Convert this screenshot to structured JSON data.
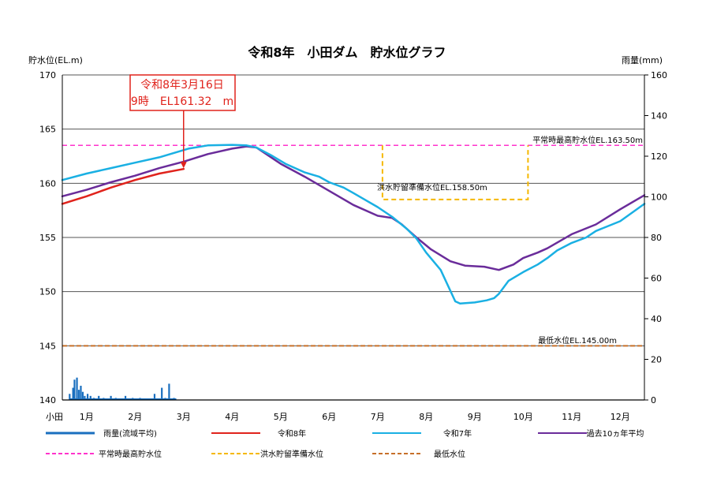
{
  "chart_data": {
    "type": "line",
    "title": "令和8年　小田ダム　貯水位グラフ",
    "ylabel_left": "貯水位(EL.m)",
    "ylabel_right": "雨量(mm)",
    "ylim_left": [
      140,
      170
    ],
    "ylim_right": [
      0,
      160
    ],
    "yticks_left": [
      "140",
      "145",
      "150",
      "155",
      "160",
      "165",
      "170"
    ],
    "yticks_right": [
      "0",
      "20",
      "40",
      "60",
      "80",
      "100",
      "120",
      "140",
      "160"
    ],
    "x_prefix": "小田",
    "months": [
      "1月",
      "2月",
      "3月",
      "4月",
      "5月",
      "6月",
      "7月",
      "8月",
      "9月",
      "10月",
      "11月",
      "12月"
    ],
    "grid": true,
    "legend_position": "bottom",
    "annotation": {
      "line1": "令和8年3月16日",
      "line2": "9時　EL161.32　m",
      "x": 2.5,
      "y": 161.32
    },
    "reference_labels": {
      "normal_max": "平常時最高貯水位EL.163.50m",
      "flood": "洪水貯留準備水位EL.158.50m",
      "minimum": "最低水位EL.145.00m"
    },
    "reference_lines": {
      "normal_max": 163.5,
      "minimum": 145.0,
      "flood_level": 158.5,
      "flood_start": 6.6,
      "flood_end": 9.6
    },
    "colors": {
      "rain": "#1a6fbf",
      "r8": "#e0231c",
      "r7": "#1ab0e3",
      "avg": "#6a2c9a",
      "normal_max": "#ff33cc",
      "flood": "#f5b800",
      "minimum": "#c7702a",
      "grid": "#555555",
      "annot_box": "#e0231c"
    },
    "series": [
      {
        "key": "r8",
        "name": "令和8年",
        "x": [
          0,
          0.5,
          1,
          1.5,
          2,
          2.5
        ],
        "y": [
          158.1,
          158.8,
          159.6,
          160.3,
          160.9,
          161.32
        ]
      },
      {
        "key": "r7",
        "name": "令和7年",
        "x": [
          0,
          0.5,
          1,
          1.5,
          2,
          2.3,
          2.6,
          3,
          3.5,
          3.8,
          4,
          4.3,
          4.6,
          5,
          5.3,
          5.5,
          5.8,
          6,
          6.5,
          6.8,
          7.1,
          7.3,
          7.5,
          7.8,
          8.1,
          8.2,
          8.5,
          8.75,
          8.9,
          9,
          9.2,
          9.5,
          9.8,
          10,
          10.2,
          10.5,
          10.8,
          11,
          11.5,
          12
        ],
        "y": [
          160.3,
          160.9,
          161.4,
          161.9,
          162.4,
          162.8,
          163.2,
          163.5,
          163.55,
          163.5,
          163.3,
          162.6,
          161.8,
          161.0,
          160.6,
          160.1,
          159.6,
          159.1,
          157.8,
          156.9,
          155.8,
          154.9,
          153.6,
          152.0,
          149.1,
          148.9,
          149.0,
          149.2,
          149.4,
          149.8,
          151.0,
          151.8,
          152.5,
          153.1,
          153.8,
          154.5,
          155.0,
          155.6,
          156.5,
          158.1
        ]
      },
      {
        "key": "avg",
        "name": "過去10ヵ年平均",
        "x": [
          0,
          0.5,
          1,
          1.5,
          2,
          2.5,
          3,
          3.5,
          3.8,
          4,
          4.5,
          5,
          5.5,
          6,
          6.5,
          6.8,
          7,
          7.3,
          7.6,
          8,
          8.3,
          8.7,
          9,
          9.3,
          9.5,
          9.8,
          10,
          10.5,
          11,
          11.5,
          12
        ],
        "y": [
          158.8,
          159.4,
          160.1,
          160.7,
          161.4,
          162.0,
          162.7,
          163.2,
          163.4,
          163.3,
          161.8,
          160.6,
          159.3,
          158.0,
          157.0,
          156.8,
          156.2,
          155.0,
          153.9,
          152.8,
          152.4,
          152.3,
          152.0,
          152.5,
          153.1,
          153.6,
          154.0,
          155.3,
          156.2,
          157.6,
          158.9
        ]
      }
    ],
    "rain": {
      "name": "雨量(流域平均)",
      "x": [
        0.15,
        0.22,
        0.25,
        0.3,
        0.34,
        0.38,
        0.42,
        0.46,
        0.52,
        0.58,
        0.65,
        0.75,
        0.85,
        1.0,
        1.1,
        1.3,
        1.45,
        1.6,
        1.9,
        2.05,
        2.12,
        2.2,
        2.3
      ],
      "values": [
        3,
        6,
        10,
        11,
        5,
        7,
        4,
        2,
        3,
        2,
        1,
        2,
        1,
        2,
        1,
        2,
        1,
        1,
        3,
        6,
        1,
        8,
        1
      ]
    },
    "legend": [
      {
        "key": "rain",
        "label": "雨量(流域平均)",
        "style": "thick"
      },
      {
        "key": "r8",
        "label": "令和8年",
        "style": "solid"
      },
      {
        "key": "r7",
        "label": "令和7年",
        "style": "solid"
      },
      {
        "key": "avg",
        "label": "過去10ヵ年平均",
        "style": "solid"
      },
      {
        "key": "normal_max",
        "label": "平常時最高貯水位",
        "style": "dash"
      },
      {
        "key": "flood",
        "label": "洪水貯留準備水位",
        "style": "dash"
      },
      {
        "key": "minimum",
        "label": "最低水位",
        "style": "dash"
      }
    ]
  }
}
